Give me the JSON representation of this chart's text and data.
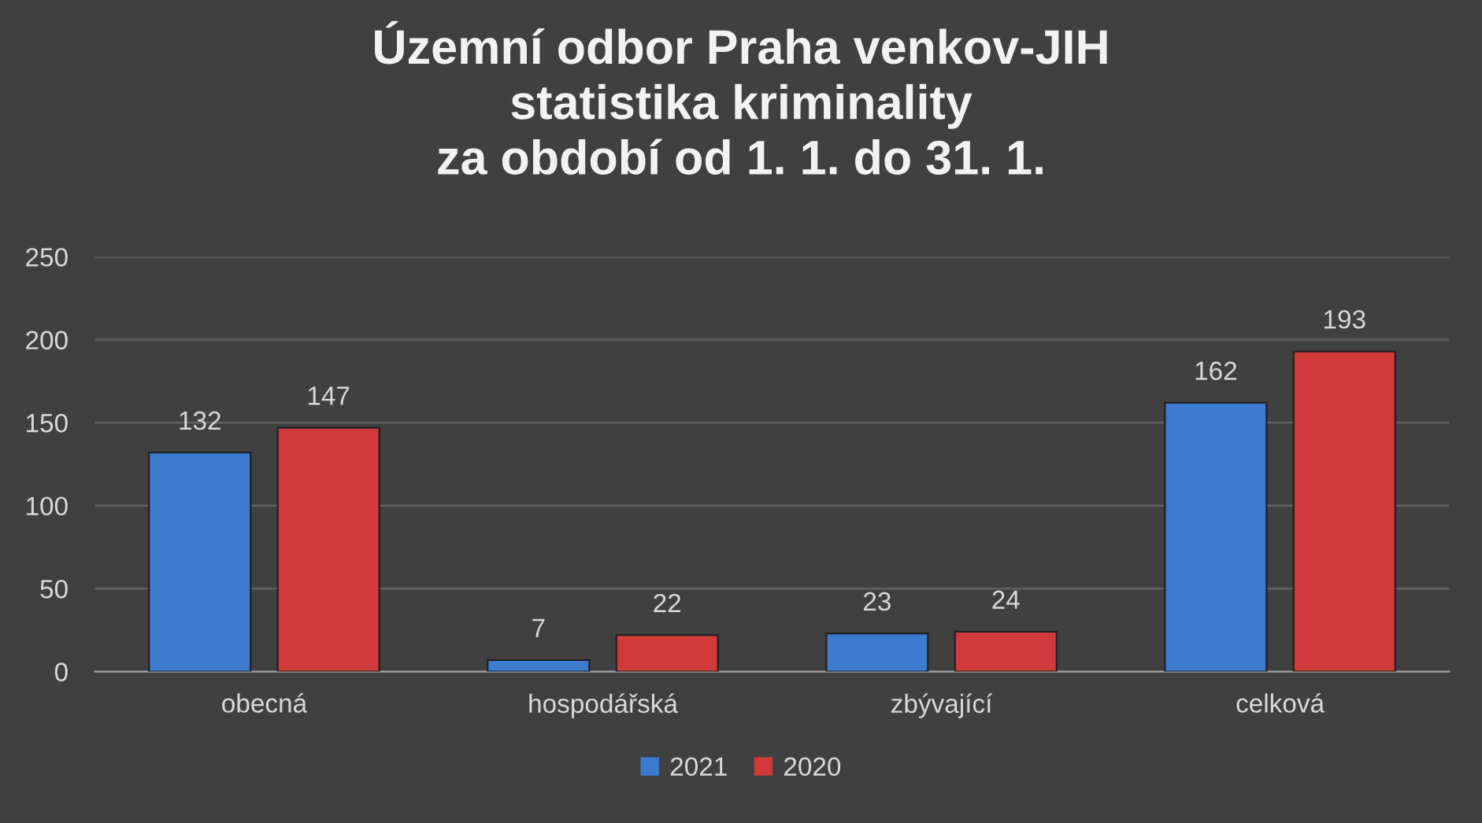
{
  "chart_data": {
    "type": "bar",
    "title": "Územní odbor Praha venkov-JIH\nstatistika kriminality\nza období od 1. 1. do 31. 1.",
    "categories": [
      "obecná",
      "hospodářská",
      "zbývající",
      "celková"
    ],
    "series": [
      {
        "name": "2021",
        "color": "#3c7bd0",
        "values": [
          132,
          7,
          23,
          162
        ]
      },
      {
        "name": "2020",
        "color": "#d03a3a",
        "values": [
          147,
          22,
          24,
          193
        ]
      }
    ],
    "ylim": [
      0,
      250
    ],
    "yticks": [
      0,
      50,
      100,
      150,
      200,
      250
    ],
    "grid": "y",
    "legend": "bottom",
    "data_labels": true
  }
}
